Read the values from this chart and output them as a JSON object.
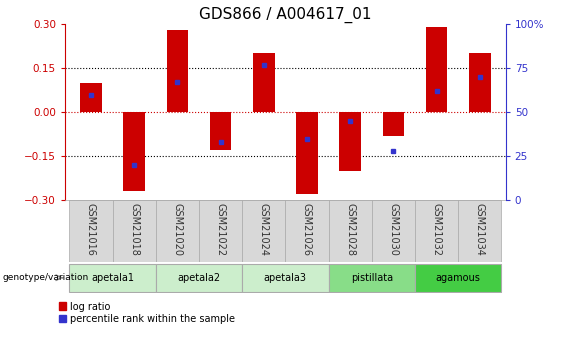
{
  "title": "GDS866 / A004617_01",
  "samples": [
    "GSM21016",
    "GSM21018",
    "GSM21020",
    "GSM21022",
    "GSM21024",
    "GSM21026",
    "GSM21028",
    "GSM21030",
    "GSM21032",
    "GSM21034"
  ],
  "log_ratios": [
    0.1,
    -0.27,
    0.28,
    -0.13,
    0.2,
    -0.28,
    -0.2,
    -0.08,
    0.29,
    0.2
  ],
  "percentile_ranks": [
    60,
    20,
    67,
    33,
    77,
    35,
    45,
    28,
    62,
    70
  ],
  "ylim": [
    -0.3,
    0.3
  ],
  "yticks": [
    -0.3,
    -0.15,
    0,
    0.15,
    0.3
  ],
  "right_yticks": [
    0,
    25,
    50,
    75,
    100
  ],
  "right_ylabels": [
    "0",
    "25",
    "50",
    "75",
    "100%"
  ],
  "bar_color": "#cc0000",
  "dot_color": "#3333cc",
  "bar_width": 0.5,
  "zero_line_color": "#cc0000",
  "legend_items": [
    {
      "label": "log ratio",
      "color": "#cc0000"
    },
    {
      "label": "percentile rank within the sample",
      "color": "#3333cc"
    }
  ],
  "label_color_left": "#cc0000",
  "label_color_right": "#3333cc",
  "title_fontsize": 11,
  "tick_fontsize": 7.5,
  "group_defs": [
    {
      "name": "apetala1",
      "indices": [
        0,
        1
      ],
      "color": "#cceecc"
    },
    {
      "name": "apetala2",
      "indices": [
        2,
        3
      ],
      "color": "#cceecc"
    },
    {
      "name": "apetala3",
      "indices": [
        4,
        5
      ],
      "color": "#cceecc"
    },
    {
      "name": "pistillata",
      "indices": [
        6,
        7
      ],
      "color": "#88dd88"
    },
    {
      "name": "agamous",
      "indices": [
        8,
        9
      ],
      "color": "#44cc44"
    }
  ],
  "sample_box_color": "#d8d8d8",
  "sample_box_edge": "#aaaaaa"
}
